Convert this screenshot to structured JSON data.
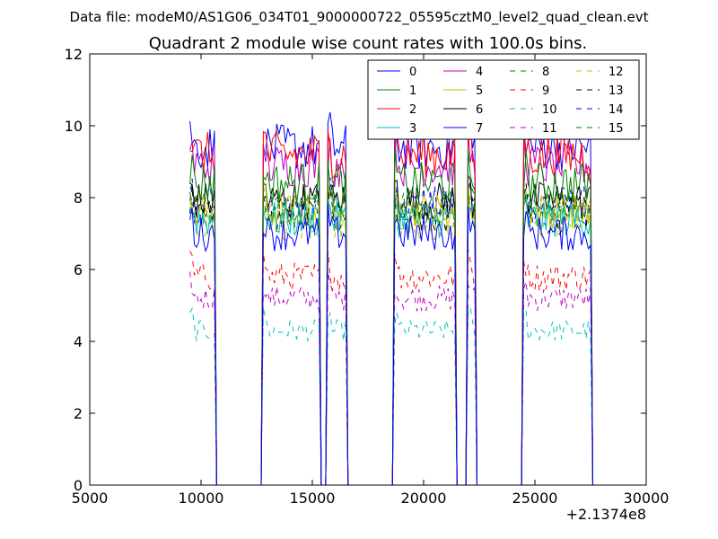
{
  "header": {
    "datafile": "Data file: modeM0/AS1G06_034T01_9000000722_05595cztM0_level2_quad_clean.evt"
  },
  "chart_data": {
    "type": "line",
    "title": "Quadrant 2 module wise count rates with 100.0s bins.",
    "xlabel": "",
    "ylabel": "",
    "xlim": [
      5000,
      30000
    ],
    "ylim": [
      0,
      12
    ],
    "x_offset_label": "+2.1374e8",
    "xticks": [
      5000,
      10000,
      15000,
      20000,
      25000,
      30000
    ],
    "xtick_labels": [
      "5000",
      "10000",
      "15000",
      "20000",
      "25000",
      "30000"
    ],
    "yticks": [
      0,
      2,
      4,
      6,
      8,
      10,
      12
    ],
    "ytick_labels": [
      "0",
      "2",
      "4",
      "6",
      "8",
      "10",
      "12"
    ],
    "legend_position": "top-right",
    "grid": false,
    "good_time_intervals": [
      [
        9500,
        10600
      ],
      [
        12800,
        15300
      ],
      [
        15700,
        16500
      ],
      [
        18700,
        21400
      ],
      [
        22000,
        22300
      ],
      [
        24500,
        27500
      ]
    ],
    "series": [
      {
        "name": "0",
        "color": "#0000ff",
        "dash": "solid",
        "level": 7.0
      },
      {
        "name": "1",
        "color": "#008000",
        "dash": "solid",
        "level": 8.4
      },
      {
        "name": "2",
        "color": "#ff0000",
        "dash": "solid",
        "level": 9.2
      },
      {
        "name": "3",
        "color": "#00bfbf",
        "dash": "solid",
        "level": 7.4
      },
      {
        "name": "4",
        "color": "#bf00bf",
        "dash": "solid",
        "level": 8.9
      },
      {
        "name": "5",
        "color": "#bfbf00",
        "dash": "solid",
        "level": 7.6
      },
      {
        "name": "6",
        "color": "#000000",
        "dash": "solid",
        "level": 7.9
      },
      {
        "name": "7",
        "color": "#0000ff",
        "dash": "solid",
        "level": 9.4
      },
      {
        "name": "8",
        "color": "#008000",
        "dash": "dashed",
        "level": 7.7
      },
      {
        "name": "9",
        "color": "#ff0000",
        "dash": "dashed",
        "level": 5.8
      },
      {
        "name": "10",
        "color": "#00bfbf",
        "dash": "dashed",
        "level": 4.3
      },
      {
        "name": "11",
        "color": "#bf00bf",
        "dash": "dashed",
        "level": 5.2
      },
      {
        "name": "12",
        "color": "#bfbf00",
        "dash": "dashed",
        "level": 7.3
      },
      {
        "name": "13",
        "color": "#000000",
        "dash": "dashed",
        "level": 7.5
      },
      {
        "name": "14",
        "color": "#0000ff",
        "dash": "dashed",
        "level": 7.8
      },
      {
        "name": "15",
        "color": "#008000",
        "dash": "dashed",
        "level": 7.6
      }
    ]
  }
}
